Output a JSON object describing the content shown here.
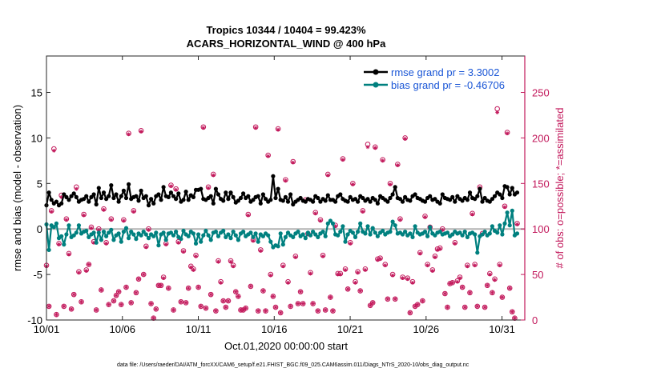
{
  "chart_data": {
    "type": "line",
    "title": "Tropics 10344 / 10404 = 99.423%",
    "subtitle": "ACARS_HORIZONTAL_WIND @ 400 hPa",
    "xlabel": "Oct.01,2020 00:00:00 start",
    "ylabel": "rmse and bias (model - observation)",
    "ylabel_right": "# of obs: o=possible; *=assimilated",
    "footnote": "data file: /Users/raeder/DAI/ATM_forcXX/CAM6_setup/f.e21.FHIST_BGC.f09_025.CAM6assim.011/Diags_NTrS_2020-10/obs_diag_output.nc",
    "xlim": [
      0,
      31.5
    ],
    "ylim": [
      -10,
      19
    ],
    "ylim_right": [
      0,
      290
    ],
    "x_tick_labels": [
      {
        "x": 0,
        "label": "10/01"
      },
      {
        "x": 5,
        "label": "10/06"
      },
      {
        "x": 10,
        "label": "10/11"
      },
      {
        "x": 15,
        "label": "10/16"
      },
      {
        "x": 20,
        "label": "10/21"
      },
      {
        "x": 25,
        "label": "10/26"
      },
      {
        "x": 30,
        "label": "10/31"
      }
    ],
    "y_ticks": [
      -10,
      -5,
      0,
      5,
      10,
      15
    ],
    "y_ticks_right": [
      0,
      50,
      100,
      150,
      200,
      250
    ],
    "legend": {
      "position": "top-right"
    },
    "zero_line": 0,
    "colors": {
      "rmse": "#000000",
      "bias": "#00807f",
      "obs": "#c2185b",
      "zero": "#b3b3b3",
      "legend_text": "#1a56d6"
    },
    "series": [
      {
        "name": "rmse grand pr = 3.3002",
        "color": "#000000",
        "values": [
          2.6,
          4.0,
          3.2,
          2.8,
          3.0,
          2.6,
          2.8,
          3.8,
          3.5,
          3.2,
          3.6,
          3.9,
          3.5,
          3.0,
          3.2,
          3.3,
          3.6,
          3.0,
          3.5,
          3.8,
          2.7,
          4.5,
          3.4,
          4.0,
          3.3,
          3.6,
          4.8,
          3.4,
          3.8,
          3.0,
          3.6,
          4.2,
          3.4,
          4.9,
          3.3,
          3.5,
          3.6,
          3.1,
          4.2,
          3.4,
          3.6,
          2.6,
          3.3,
          2.8,
          3.6,
          3.8,
          3.2,
          4.6,
          3.6,
          3.5,
          4.0,
          3.6,
          3.3,
          3.9,
          3.0,
          3.2,
          4.1,
          3.2,
          3.7,
          3.5,
          4.3,
          4.3,
          4.4,
          3.3,
          3.2,
          3.4,
          3.6,
          2.8,
          4.4,
          3.8,
          3.3,
          3.1,
          4.0,
          3.3,
          4.0,
          3.5,
          2.9,
          3.1,
          3.4,
          3.9,
          3.4,
          3.6,
          3.0,
          3.2,
          3.5,
          3.6,
          2.8,
          3.8,
          3.3,
          3.0,
          3.2,
          5.8,
          3.4,
          4.4,
          3.2,
          3.1,
          3.5,
          3.0,
          3.8,
          2.7,
          3.0,
          3.2,
          3.4,
          3.1,
          3.0,
          3.3,
          3.2,
          3.0,
          3.6,
          3.4,
          3.0,
          3.3,
          3.1,
          3.7,
          3.2,
          3.2,
          3.0,
          3.6,
          3.8,
          3.3,
          3.1,
          3.0,
          3.5,
          3.2,
          3.3,
          3.0,
          3.6,
          3.4,
          3.1,
          3.3,
          3.0,
          3.4,
          3.2,
          2.8,
          3.6,
          3.4,
          3.2,
          3.0,
          3.4,
          3.8,
          4.6,
          3.4,
          3.3,
          3.0,
          3.5,
          3.2,
          3.1,
          3.6,
          3.8,
          3.4,
          3.3,
          3.1,
          3.0,
          3.4,
          3.6,
          3.2,
          3.3,
          3.0,
          2.8,
          3.8,
          3.4,
          3.3,
          3.2,
          3.5,
          3.0,
          3.6,
          3.3,
          3.1,
          3.4,
          3.2,
          4.0,
          3.4,
          3.3,
          3.6,
          4.4,
          3.0,
          3.4,
          3.1,
          3.0,
          3.3,
          3.6,
          4.0,
          3.8,
          3.4,
          4.7,
          4.6,
          3.8,
          4.5,
          3.8,
          4.0
        ]
      },
      {
        "name": "bias grand pr = -0.46706",
        "color": "#00807f",
        "values": [
          0.5,
          -2.3,
          0.4,
          0.2,
          0.6,
          -1.0,
          -0.8,
          -1.7,
          -0.6,
          0.4,
          -0.9,
          -0.7,
          -0.4,
          0.4,
          -0.5,
          -0.3,
          -0.2,
          -0.9,
          -0.6,
          -0.4,
          -1.5,
          -0.4,
          -1.2,
          -0.3,
          -0.8,
          -0.4,
          -0.1,
          -1.2,
          -0.7,
          -0.5,
          -1.4,
          -0.3,
          0.1,
          -1.0,
          -0.3,
          -0.6,
          -1.1,
          -0.5,
          -0.7,
          -0.3,
          -0.6,
          -1.0,
          -0.6,
          -0.8,
          -0.4,
          -1.8,
          -0.6,
          -0.4,
          -1.2,
          -0.5,
          -0.4,
          -0.7,
          -0.3,
          -0.9,
          -1.1,
          -0.2,
          -0.6,
          -0.8,
          -0.3,
          -0.5,
          -1.6,
          -0.6,
          -1.4,
          -0.7,
          -0.2,
          -0.7,
          -1.2,
          -0.4,
          -0.3,
          -0.8,
          -0.4,
          -0.2,
          -0.9,
          -0.6,
          -1.0,
          -0.3,
          -0.7,
          -1.2,
          -0.5,
          -0.3,
          -0.8,
          -0.6,
          -0.4,
          -0.9,
          -0.5,
          -1.4,
          -0.6,
          -0.8,
          -0.5,
          -0.7,
          -1.4,
          -2.0,
          -1.8,
          -1.9,
          -0.5,
          -1.7,
          -0.9,
          -0.4,
          -0.7,
          -0.9,
          -0.5,
          -0.3,
          -0.8,
          -0.6,
          -1.0,
          -0.4,
          -0.7,
          -0.3,
          -0.6,
          -0.9,
          -0.5,
          -0.3,
          -0.8,
          0.6,
          0.9,
          0.6,
          -0.6,
          -0.7,
          -0.3,
          0.3,
          -1.4,
          -0.6,
          -0.2,
          -0.4,
          -0.9,
          -0.3,
          0.6,
          -0.3,
          -0.5,
          0.3,
          -0.6,
          0.1,
          -0.4,
          -0.8,
          -0.4,
          -0.2,
          -0.6,
          -0.4,
          -0.3,
          0.8,
          0.4,
          -0.5,
          -0.4,
          -0.6,
          -0.3,
          -0.7,
          -0.5,
          -0.9,
          0.3,
          -0.4,
          -0.6,
          -0.5,
          -0.3,
          -0.8,
          0.2,
          -0.5,
          -0.7,
          -0.4,
          -0.3,
          -0.6,
          -0.5,
          -0.4,
          -0.8,
          -0.6,
          -0.3,
          -0.5,
          -0.4,
          -0.7,
          -0.3,
          -0.9,
          -0.5,
          -0.4,
          -0.6,
          -2.6,
          -0.8,
          -0.6,
          -0.3,
          -0.7,
          -0.5,
          0.3,
          -0.2,
          -0.4,
          0.4,
          -0.6,
          0.6,
          1.8,
          0.4,
          2.0,
          -0.7,
          -0.5
        ]
      }
    ],
    "obs": {
      "name_possible": "possible",
      "name_assimilated": "assimilated",
      "possible": [
        60,
        15,
        120,
        188,
        6,
        84,
        137,
        15,
        111,
        73,
        12,
        28,
        146,
        53,
        20,
        116,
        55,
        61,
        102,
        86,
        11,
        100,
        33,
        122,
        85,
        17,
        111,
        21,
        27,
        31,
        17,
        110,
        36,
        205,
        19,
        120,
        30,
        45,
        208,
        50,
        81,
        100,
        18,
        2,
        12,
        38,
        38,
        47,
        84,
        35,
        148,
        11,
        144,
        86,
        20,
        76,
        19,
        35,
        59,
        56,
        71,
        36,
        15,
        212,
        13,
        146,
        28,
        160,
        10,
        65,
        42,
        21,
        14,
        21,
        65,
        60,
        31,
        26,
        11,
        11,
        13,
        116,
        37,
        88,
        212,
        10,
        77,
        32,
        10,
        181,
        50,
        26,
        14,
        210,
        8,
        60,
        154,
        42,
        15,
        174,
        70,
        18,
        31,
        18,
        132,
        95,
        52,
        18,
        118,
        10,
        110,
        71,
        11,
        160,
        25,
        10,
        104,
        51,
        51,
        177,
        56,
        34,
        85,
        150,
        42,
        53,
        32,
        120,
        56,
        193,
        16,
        19,
        190,
        67,
        68,
        176,
        61,
        23,
        150,
        50,
        23,
        171,
        111,
        47,
        200,
        46,
        8,
        42,
        15,
        17,
        74,
        21,
        114,
        61,
        102,
        55,
        70,
        78,
        79,
        100,
        29,
        14,
        40,
        41,
        85,
        43,
        47,
        36,
        14,
        60,
        30,
        117,
        61,
        15,
        146,
        95,
        14,
        38,
        51,
        30,
        45,
        232,
        61,
        25,
        125,
        206,
        35,
        9,
        2,
        106
      ],
      "assimilated": [
        59,
        15,
        119,
        186,
        6,
        83,
        135,
        15,
        110,
        72,
        12,
        28,
        144,
        52,
        20,
        115,
        54,
        61,
        101,
        85,
        11,
        99,
        33,
        121,
        84,
        17,
        110,
        21,
        27,
        31,
        17,
        109,
        36,
        204,
        19,
        119,
        30,
        45,
        207,
        50,
        80,
        99,
        18,
        2,
        12,
        38,
        38,
        46,
        83,
        35,
        147,
        11,
        143,
        85,
        20,
        75,
        19,
        35,
        58,
        55,
        70,
        36,
        15,
        211,
        13,
        145,
        28,
        159,
        10,
        64,
        41,
        21,
        14,
        21,
        64,
        59,
        31,
        26,
        11,
        11,
        13,
        115,
        37,
        87,
        211,
        10,
        76,
        32,
        10,
        180,
        49,
        26,
        14,
        209,
        8,
        59,
        153,
        41,
        15,
        173,
        69,
        18,
        31,
        18,
        131,
        94,
        51,
        18,
        117,
        10,
        109,
        70,
        11,
        159,
        25,
        10,
        103,
        50,
        50,
        176,
        55,
        34,
        84,
        149,
        41,
        52,
        32,
        119,
        55,
        190,
        16,
        19,
        189,
        66,
        67,
        175,
        60,
        23,
        149,
        49,
        23,
        170,
        110,
        46,
        199,
        45,
        8,
        41,
        15,
        17,
        73,
        21,
        113,
        60,
        101,
        54,
        69,
        77,
        78,
        99,
        29,
        14,
        40,
        41,
        84,
        42,
        46,
        36,
        14,
        59,
        30,
        116,
        60,
        15,
        145,
        94,
        14,
        38,
        50,
        30,
        44,
        228,
        60,
        25,
        124,
        205,
        35,
        9,
        2,
        105
      ]
    }
  }
}
